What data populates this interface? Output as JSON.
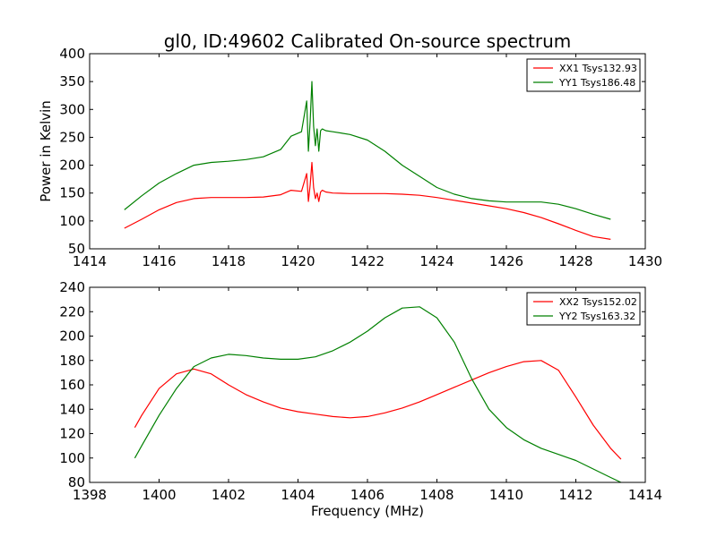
{
  "figure": {
    "title": "gl0, ID:49602 Calibrated On-source spectrum",
    "ylabel": "Power in Kelvin",
    "xlabel": "Frequency (MHz)"
  },
  "chart_data": [
    {
      "type": "line",
      "xlim": [
        1414,
        1430
      ],
      "ylim": [
        50,
        400
      ],
      "xticks": [
        1414,
        1416,
        1418,
        1420,
        1422,
        1424,
        1426,
        1428,
        1430
      ],
      "yticks": [
        50,
        100,
        150,
        200,
        250,
        300,
        350,
        400
      ],
      "legend": "top-right",
      "grid": false,
      "series": [
        {
          "name": "XX1 Tsys132.93",
          "color": "#ff0000",
          "x": [
            1415.0,
            1415.5,
            1416.0,
            1416.5,
            1417.0,
            1417.5,
            1418.0,
            1418.5,
            1419.0,
            1419.5,
            1419.8,
            1420.1,
            1420.25,
            1420.3,
            1420.35,
            1420.4,
            1420.45,
            1420.5,
            1420.55,
            1420.6,
            1420.65,
            1420.7,
            1420.8,
            1421.0,
            1421.5,
            1422.0,
            1422.5,
            1423.0,
            1423.5,
            1424.0,
            1424.5,
            1425.0,
            1425.5,
            1426.0,
            1426.5,
            1427.0,
            1427.5,
            1428.0,
            1428.5,
            1429.0
          ],
          "y": [
            87,
            103,
            120,
            133,
            140,
            142,
            142,
            142,
            143,
            147,
            155,
            153,
            185,
            135,
            165,
            205,
            160,
            140,
            150,
            135,
            152,
            155,
            152,
            150,
            149,
            149,
            149,
            148,
            146,
            142,
            137,
            132,
            127,
            122,
            115,
            106,
            95,
            83,
            72,
            67
          ]
        },
        {
          "name": "YY1 Tsys186.48",
          "color": "#008000",
          "x": [
            1415.0,
            1415.5,
            1416.0,
            1416.5,
            1417.0,
            1417.5,
            1418.0,
            1418.5,
            1419.0,
            1419.5,
            1419.8,
            1420.1,
            1420.25,
            1420.3,
            1420.35,
            1420.4,
            1420.45,
            1420.5,
            1420.55,
            1420.6,
            1420.65,
            1420.7,
            1420.8,
            1421.0,
            1421.5,
            1422.0,
            1422.5,
            1423.0,
            1423.5,
            1424.0,
            1424.5,
            1425.0,
            1425.5,
            1426.0,
            1426.5,
            1427.0,
            1427.5,
            1428.0,
            1428.5,
            1429.0
          ],
          "y": [
            120,
            145,
            168,
            185,
            200,
            205,
            207,
            210,
            215,
            228,
            252,
            260,
            315,
            225,
            280,
            350,
            270,
            235,
            265,
            225,
            262,
            265,
            262,
            260,
            255,
            245,
            225,
            200,
            180,
            160,
            148,
            140,
            136,
            134,
            134,
            134,
            130,
            122,
            112,
            103
          ]
        }
      ]
    },
    {
      "type": "line",
      "xlim": [
        1398,
        1414
      ],
      "ylim": [
        80,
        240
      ],
      "xticks": [
        1398,
        1400,
        1402,
        1404,
        1406,
        1408,
        1410,
        1412,
        1414
      ],
      "yticks": [
        80,
        100,
        120,
        140,
        160,
        180,
        200,
        220,
        240
      ],
      "legend": "top-right",
      "grid": false,
      "series": [
        {
          "name": "XX2 Tsys152.02",
          "color": "#ff0000",
          "x": [
            1399.3,
            1399.5,
            1400.0,
            1400.5,
            1401.0,
            1401.5,
            1402.0,
            1402.5,
            1403.0,
            1403.5,
            1404.0,
            1404.5,
            1405.0,
            1405.5,
            1406.0,
            1406.5,
            1407.0,
            1407.5,
            1408.0,
            1408.5,
            1409.0,
            1409.5,
            1410.0,
            1410.5,
            1411.0,
            1411.5,
            1412.0,
            1412.5,
            1413.0,
            1413.3
          ],
          "y": [
            125,
            135,
            157,
            169,
            173,
            169,
            160,
            152,
            146,
            141,
            138,
            136,
            134,
            133,
            134,
            137,
            141,
            146,
            152,
            158,
            164,
            170,
            175,
            179,
            180,
            172,
            150,
            127,
            108,
            99
          ]
        },
        {
          "name": "YY2 Tsys163.32",
          "color": "#008000",
          "x": [
            1399.3,
            1399.5,
            1400.0,
            1400.5,
            1401.0,
            1401.5,
            1402.0,
            1402.5,
            1403.0,
            1403.5,
            1404.0,
            1404.5,
            1405.0,
            1405.5,
            1406.0,
            1406.5,
            1407.0,
            1407.5,
            1408.0,
            1408.5,
            1409.0,
            1409.5,
            1410.0,
            1410.5,
            1411.0,
            1411.5,
            1412.0,
            1412.5,
            1413.0,
            1413.3
          ],
          "y": [
            100,
            110,
            135,
            157,
            175,
            182,
            185,
            184,
            182,
            181,
            181,
            183,
            188,
            195,
            204,
            215,
            223,
            224,
            215,
            195,
            165,
            140,
            125,
            115,
            108,
            103,
            98,
            91,
            84,
            80
          ]
        }
      ]
    }
  ]
}
